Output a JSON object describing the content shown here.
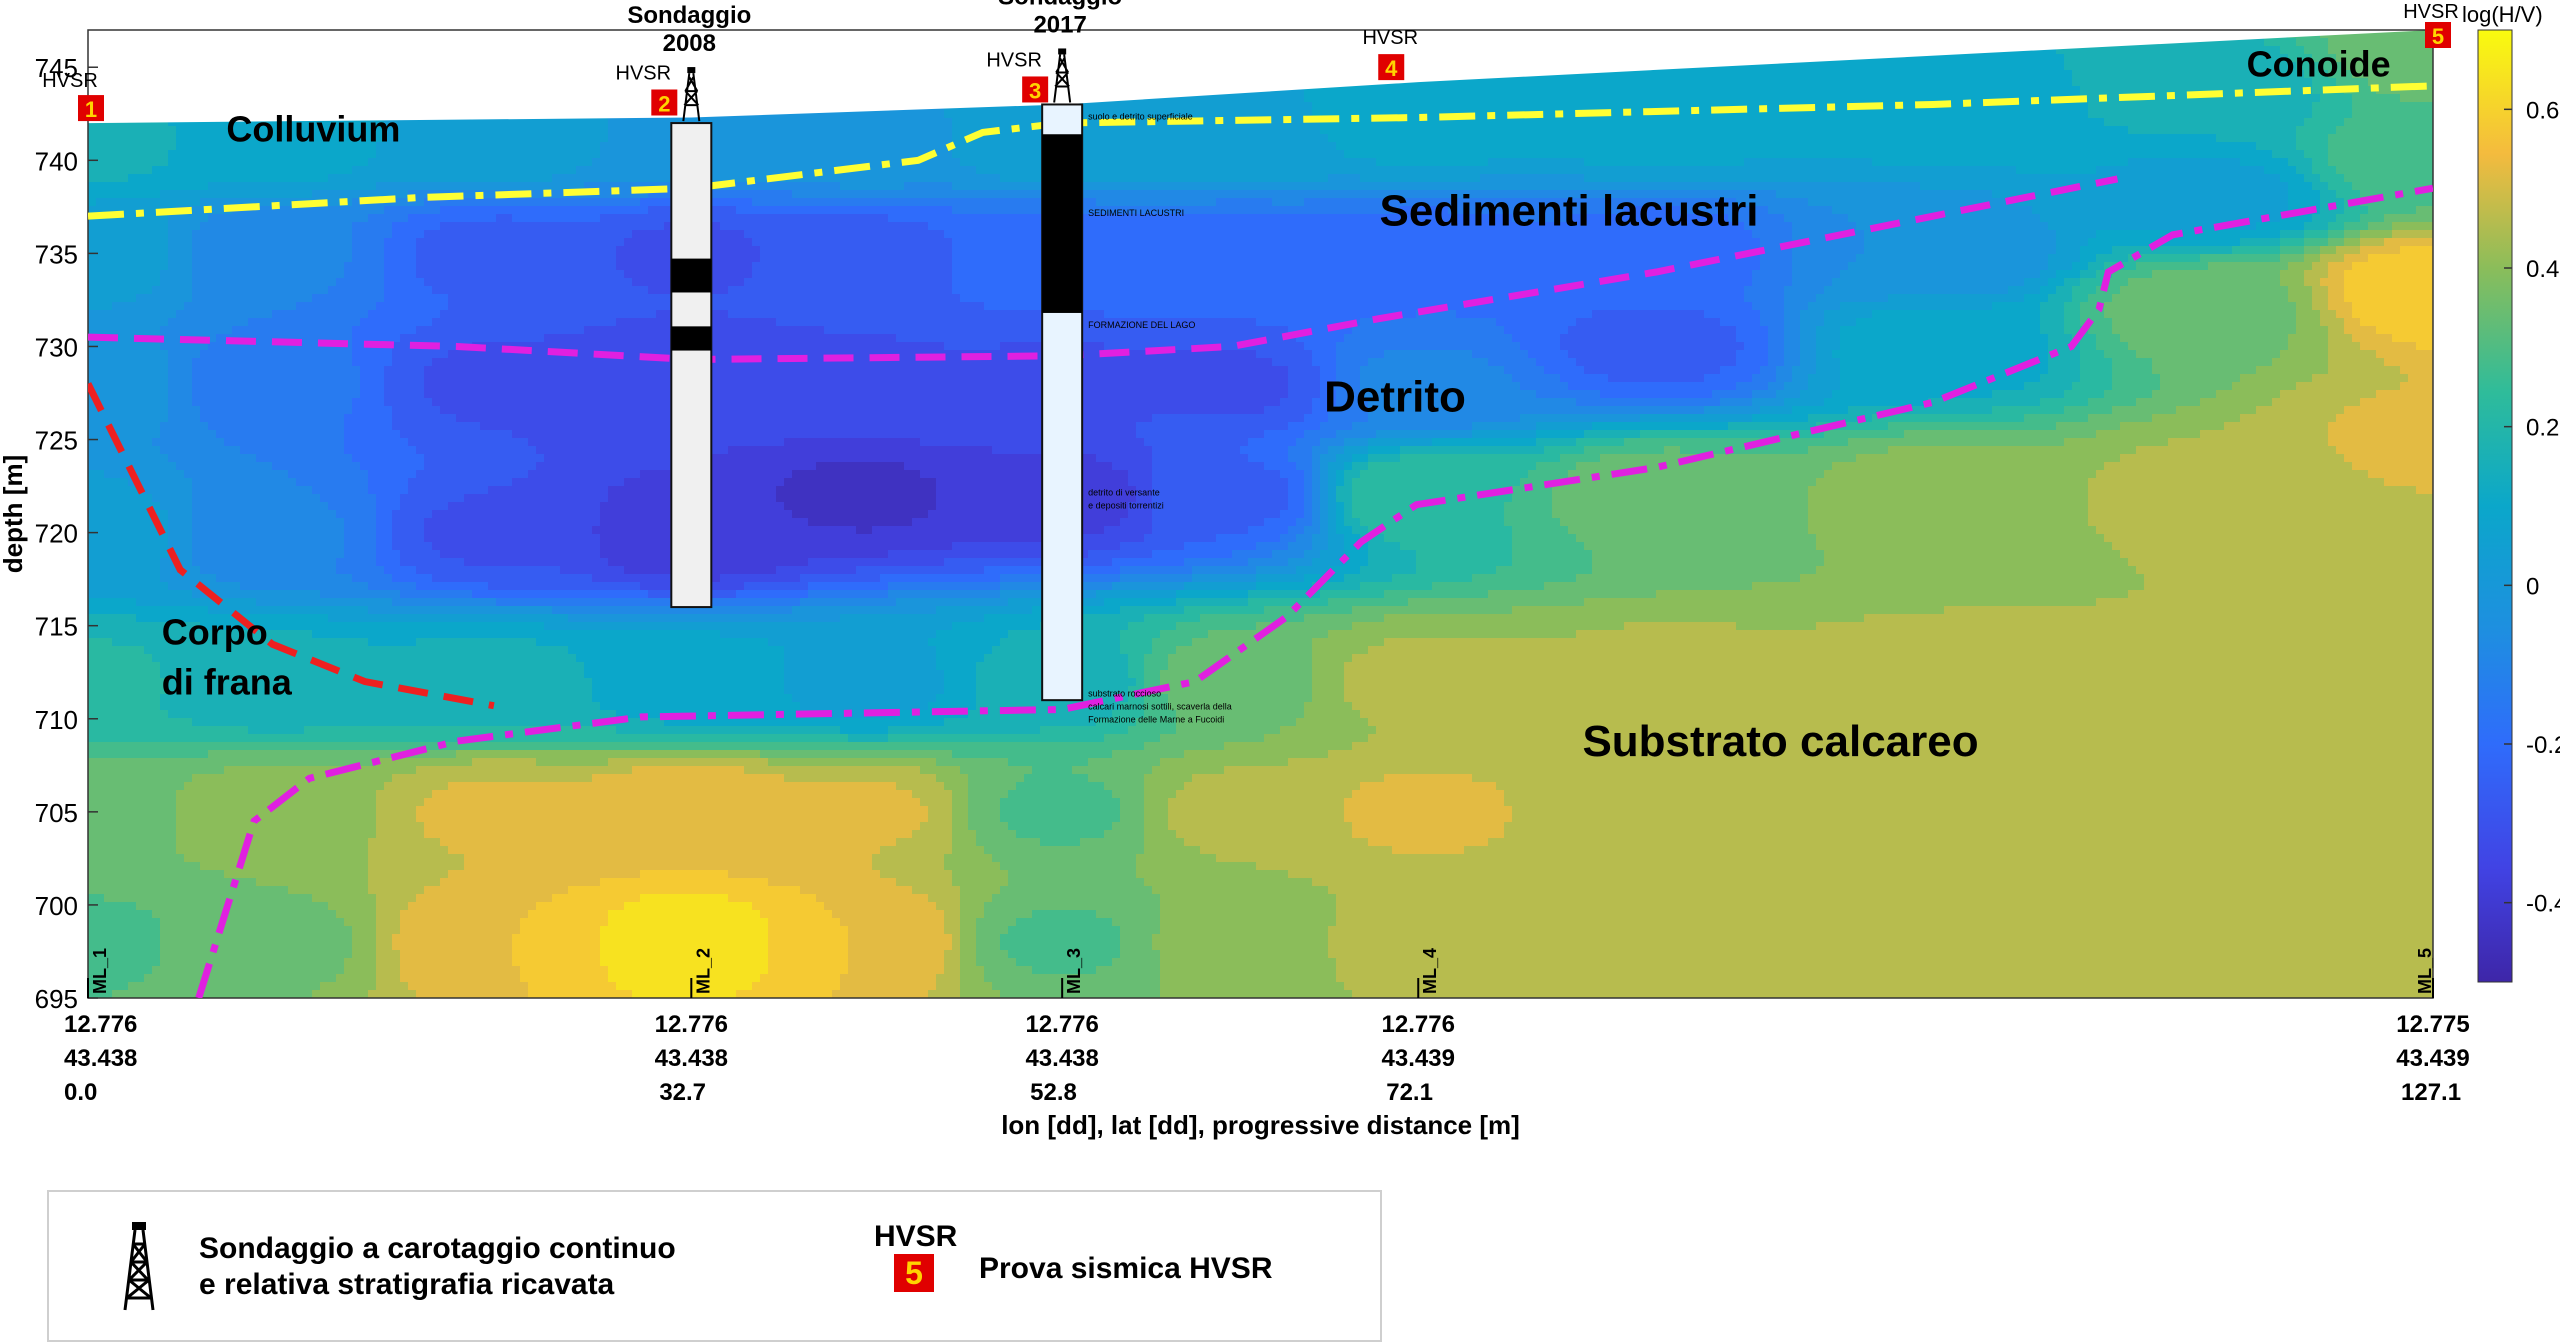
{
  "chart_data": {
    "type": "heatmap",
    "title": "",
    "xlabel": "lon [dd], lat [dd], progressive distance [m]",
    "ylabel": "depth [m]",
    "colorbar_label": "log(H/V)",
    "colormap": "parula",
    "clim": [
      -0.5,
      0.7
    ],
    "ylim": [
      695,
      747
    ],
    "xlim": [
      0.0,
      127.1
    ],
    "yticks": [
      695,
      700,
      705,
      710,
      715,
      720,
      725,
      730,
      735,
      740,
      745
    ],
    "colorbar_ticks": [
      -0.4,
      -0.2,
      0,
      0.2,
      0.4,
      0.6
    ],
    "colorbar_tick_labels": [
      "-0.4",
      "-0.2",
      "0",
      "0.2",
      "0.4",
      "0.6"
    ],
    "x_ticks": [
      {
        "lon": "12.776",
        "lat": "43.438",
        "dist": "0.0",
        "x": 0.0
      },
      {
        "lon": "12.776",
        "lat": "43.438",
        "dist": "32.7",
        "x": 32.7
      },
      {
        "lon": "12.776",
        "lat": "43.438",
        "dist": "52.8",
        "x": 52.8
      },
      {
        "lon": "12.776",
        "lat": "43.439",
        "dist": "72.1",
        "x": 72.1
      },
      {
        "lon": "12.775",
        "lat": "43.439",
        "dist": "127.1",
        "x": 127.1
      }
    ],
    "stations": [
      {
        "id": "ML_1",
        "x": 0.0
      },
      {
        "id": "ML_2",
        "x": 32.7
      },
      {
        "id": "ML_3",
        "x": 52.8
      },
      {
        "id": "ML_4",
        "x": 72.1
      },
      {
        "id": "ML_5",
        "x": 127.1
      }
    ],
    "hvsr_markers": [
      {
        "number": "1",
        "tag": "HVSR",
        "x": 0.0
      },
      {
        "number": "2",
        "tag": "HVSR",
        "x": 32.7
      },
      {
        "number": "3",
        "tag": "HVSR",
        "x": 52.8
      },
      {
        "number": "4",
        "tag": "HVSR",
        "x": 72.1
      },
      {
        "number": "5",
        "tag": "HVSR",
        "x": 127.1
      }
    ],
    "boreholes": [
      {
        "label_1": "Sondaggio",
        "label_2": "2008",
        "x": 32.7,
        "top": 742,
        "bottom": 716
      },
      {
        "label_1": "Sondaggio",
        "label_2": "2017",
        "x": 52.8,
        "top": 743,
        "bottom": 711
      }
    ],
    "topography": [
      [
        0,
        742
      ],
      [
        32.7,
        742.3
      ],
      [
        52.8,
        743
      ],
      [
        72.1,
        744.2
      ],
      [
        127.1,
        747
      ]
    ],
    "field_nodes": [
      {
        "x": 0,
        "y": 741,
        "v": 0.15
      },
      {
        "x": 0,
        "y": 735,
        "v": 0.05
      },
      {
        "x": 0,
        "y": 728,
        "v": 0.0
      },
      {
        "x": 0,
        "y": 720,
        "v": 0.05
      },
      {
        "x": 0,
        "y": 712,
        "v": 0.2
      },
      {
        "x": 0,
        "y": 705,
        "v": 0.35
      },
      {
        "x": 0,
        "y": 698,
        "v": 0.3
      },
      {
        "x": 10,
        "y": 741,
        "v": 0.1
      },
      {
        "x": 10,
        "y": 735,
        "v": -0.1
      },
      {
        "x": 10,
        "y": 728,
        "v": -0.15
      },
      {
        "x": 10,
        "y": 720,
        "v": -0.1
      },
      {
        "x": 10,
        "y": 712,
        "v": 0.15
      },
      {
        "x": 10,
        "y": 705,
        "v": 0.4
      },
      {
        "x": 10,
        "y": 698,
        "v": 0.35
      },
      {
        "x": 22,
        "y": 741,
        "v": 0.05
      },
      {
        "x": 22,
        "y": 735,
        "v": -0.25
      },
      {
        "x": 22,
        "y": 728,
        "v": -0.3
      },
      {
        "x": 22,
        "y": 720,
        "v": -0.3
      },
      {
        "x": 22,
        "y": 712,
        "v": 0.15
      },
      {
        "x": 22,
        "y": 705,
        "v": 0.5
      },
      {
        "x": 22,
        "y": 698,
        "v": 0.55
      },
      {
        "x": 32.7,
        "y": 741,
        "v": 0.0
      },
      {
        "x": 32.7,
        "y": 735,
        "v": -0.3
      },
      {
        "x": 32.7,
        "y": 728,
        "v": -0.35
      },
      {
        "x": 32.7,
        "y": 720,
        "v": -0.4
      },
      {
        "x": 32.7,
        "y": 712,
        "v": 0.1
      },
      {
        "x": 32.7,
        "y": 705,
        "v": 0.55
      },
      {
        "x": 32.7,
        "y": 698,
        "v": 0.65
      },
      {
        "x": 42,
        "y": 741,
        "v": 0.0
      },
      {
        "x": 42,
        "y": 735,
        "v": -0.25
      },
      {
        "x": 42,
        "y": 728,
        "v": -0.3
      },
      {
        "x": 42,
        "y": 722,
        "v": -0.42
      },
      {
        "x": 42,
        "y": 712,
        "v": 0.05
      },
      {
        "x": 42,
        "y": 705,
        "v": 0.5
      },
      {
        "x": 42,
        "y": 698,
        "v": 0.55
      },
      {
        "x": 52.8,
        "y": 741,
        "v": 0.05
      },
      {
        "x": 52.8,
        "y": 735,
        "v": -0.2
      },
      {
        "x": 52.8,
        "y": 728,
        "v": -0.3
      },
      {
        "x": 52.8,
        "y": 722,
        "v": -0.38
      },
      {
        "x": 52.8,
        "y": 712,
        "v": 0.15
      },
      {
        "x": 52.8,
        "y": 705,
        "v": 0.3
      },
      {
        "x": 52.8,
        "y": 698,
        "v": 0.3
      },
      {
        "x": 62,
        "y": 741,
        "v": 0.05
      },
      {
        "x": 62,
        "y": 735,
        "v": -0.2
      },
      {
        "x": 62,
        "y": 728,
        "v": -0.3
      },
      {
        "x": 62,
        "y": 722,
        "v": -0.25
      },
      {
        "x": 62,
        "y": 712,
        "v": 0.35
      },
      {
        "x": 62,
        "y": 705,
        "v": 0.45
      },
      {
        "x": 62,
        "y": 698,
        "v": 0.4
      },
      {
        "x": 72.1,
        "y": 742,
        "v": 0.1
      },
      {
        "x": 72.1,
        "y": 735,
        "v": -0.2
      },
      {
        "x": 72.1,
        "y": 728,
        "v": -0.1
      },
      {
        "x": 72.1,
        "y": 722,
        "v": 0.25
      },
      {
        "x": 72.1,
        "y": 712,
        "v": 0.45
      },
      {
        "x": 72.1,
        "y": 705,
        "v": 0.5
      },
      {
        "x": 72.1,
        "y": 698,
        "v": 0.45
      },
      {
        "x": 85,
        "y": 742,
        "v": 0.1
      },
      {
        "x": 85,
        "y": 735,
        "v": -0.2
      },
      {
        "x": 85,
        "y": 730,
        "v": -0.25
      },
      {
        "x": 85,
        "y": 722,
        "v": 0.35
      },
      {
        "x": 85,
        "y": 712,
        "v": 0.45
      },
      {
        "x": 85,
        "y": 705,
        "v": 0.45
      },
      {
        "x": 85,
        "y": 698,
        "v": 0.45
      },
      {
        "x": 100,
        "y": 743,
        "v": 0.1
      },
      {
        "x": 100,
        "y": 735,
        "v": -0.05
      },
      {
        "x": 100,
        "y": 730,
        "v": 0.1
      },
      {
        "x": 100,
        "y": 722,
        "v": 0.4
      },
      {
        "x": 100,
        "y": 712,
        "v": 0.45
      },
      {
        "x": 100,
        "y": 705,
        "v": 0.45
      },
      {
        "x": 100,
        "y": 698,
        "v": 0.45
      },
      {
        "x": 115,
        "y": 744,
        "v": 0.15
      },
      {
        "x": 115,
        "y": 738,
        "v": 0.05
      },
      {
        "x": 115,
        "y": 732,
        "v": 0.35
      },
      {
        "x": 115,
        "y": 722,
        "v": 0.45
      },
      {
        "x": 115,
        "y": 712,
        "v": 0.45
      },
      {
        "x": 115,
        "y": 705,
        "v": 0.45
      },
      {
        "x": 115,
        "y": 698,
        "v": 0.45
      },
      {
        "x": 127.1,
        "y": 746,
        "v": 0.35
      },
      {
        "x": 127.1,
        "y": 740,
        "v": 0.3
      },
      {
        "x": 127.1,
        "y": 733,
        "v": 0.6
      },
      {
        "x": 127.1,
        "y": 725,
        "v": 0.5
      },
      {
        "x": 127.1,
        "y": 712,
        "v": 0.45
      },
      {
        "x": 127.1,
        "y": 705,
        "v": 0.45
      },
      {
        "x": 127.1,
        "y": 698,
        "v": 0.45
      }
    ],
    "boundaries": [
      {
        "name": "Colluvium/Sedimenti",
        "color": "#ffff33",
        "style": "dashdot",
        "points": [
          [
            0,
            737
          ],
          [
            18,
            738
          ],
          [
            32.7,
            738.5
          ],
          [
            45,
            740
          ],
          [
            48.5,
            741.5
          ],
          [
            52.8,
            742
          ],
          [
            72.1,
            742.3
          ],
          [
            100,
            743
          ],
          [
            127.1,
            744
          ]
        ]
      },
      {
        "name": "Sedimenti/Detrito",
        "color": "#e020e0",
        "style": "dashed",
        "points": [
          [
            0,
            730.5
          ],
          [
            20,
            730
          ],
          [
            32.7,
            729.3
          ],
          [
            52.8,
            729.5
          ],
          [
            62,
            730
          ],
          [
            70,
            731.5
          ],
          [
            85,
            734
          ],
          [
            100,
            737
          ],
          [
            110,
            739
          ]
        ]
      },
      {
        "name": "Detrito/Substrato",
        "color": "#e020e0",
        "style": "dashdot",
        "points": [
          [
            6,
            695
          ],
          [
            9,
            704.5
          ],
          [
            12,
            706.8
          ],
          [
            20,
            708.8
          ],
          [
            30,
            710.1
          ],
          [
            52.8,
            710.5
          ],
          [
            60,
            712
          ],
          [
            65,
            715.5
          ],
          [
            69,
            719.5
          ],
          [
            72,
            721.5
          ],
          [
            85,
            723.5
          ],
          [
            100,
            727
          ],
          [
            107.5,
            730
          ],
          [
            109,
            732
          ],
          [
            109.5,
            734
          ],
          [
            113,
            736
          ],
          [
            127.1,
            738.5
          ]
        ]
      },
      {
        "name": "Corpo di frana",
        "color": "#ee2020",
        "style": "dashed",
        "points": [
          [
            0,
            728
          ],
          [
            5,
            718
          ],
          [
            10,
            714
          ],
          [
            15,
            712
          ],
          [
            22,
            710.7
          ]
        ]
      }
    ],
    "annotations": [
      {
        "text": "Colluvium",
        "x": 7.5,
        "y": 741
      },
      {
        "text": "Sedimenti lacustri",
        "x": 70,
        "y": 736.5
      },
      {
        "text": "Conoide",
        "x": 117,
        "y": 744.5
      },
      {
        "text": "Detrito",
        "x": 67,
        "y": 726.5
      },
      {
        "text": "Corpo",
        "x": 4,
        "y": 714
      },
      {
        "text": "di frana",
        "x": 4,
        "y": 711.3
      },
      {
        "text": "Substrato calcareo",
        "x": 81,
        "y": 708
      }
    ],
    "borehole_log_2017_labels": [
      "suolo e detrito superficiale",
      "SEDIMENTI LACUSTRI",
      "FORMAZIONE DEL LAGO",
      "detrito di versante",
      "e depositi torrentizi",
      "substrato roccioso",
      "calcari marnosi sottili, scaverla della",
      "Formazione delle Marne a Fucoidi"
    ]
  },
  "legend": {
    "borehole_text_1": "Sondaggio a carotaggio continuo",
    "borehole_text_2": "e relativa stratigrafia ricavata",
    "hvsr_tag": "HVSR",
    "hvsr_number": "5",
    "hvsr_text": "Prova sismica HVSR"
  },
  "colors": {
    "badge_bg": "#e00000",
    "badge_fg": "#ffd400",
    "dash_yellow": "#ffff33",
    "dash_magenta": "#e020e0",
    "dash_red": "#ee2020"
  }
}
